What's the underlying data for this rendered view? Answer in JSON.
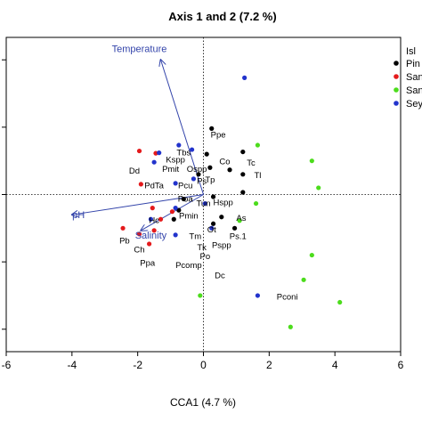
{
  "chart_data": {
    "type": "scatter",
    "title": "Axis 1 and 2 (7.2 %)",
    "xlabel": "CCA1 (4.7 %)",
    "ylabel": "",
    "xlim": [
      -6,
      6
    ],
    "ylim": [
      -3.5,
      3.5
    ],
    "x_ticks": [
      "-6",
      "-4",
      "-2",
      "0",
      "2",
      "4",
      "6"
    ],
    "y_tick_values": [
      -3,
      -1.5,
      0,
      1.5,
      3
    ],
    "reference_lines": {
      "x": 0,
      "y": 0,
      "style": "dotted"
    },
    "legend": {
      "position": "top-right",
      "title": "Isl",
      "entries": [
        {
          "label": "Pin",
          "color": "#000000"
        },
        {
          "label": "San",
          "color": "#e41a1c"
        },
        {
          "label": "San",
          "color": "#4cdc1c"
        },
        {
          "label": "Sey",
          "color": "#2233cc"
        }
      ]
    },
    "series": [
      {
        "name": "Pin",
        "color": "#000000",
        "points": [
          [
            0.25,
            1.47
          ],
          [
            0.1,
            0.9
          ],
          [
            -0.15,
            0.45
          ],
          [
            0.2,
            0.6
          ],
          [
            0.8,
            0.55
          ],
          [
            1.2,
            0.95
          ],
          [
            1.2,
            0.45
          ],
          [
            1.2,
            0.05
          ],
          [
            0.3,
            -0.05
          ],
          [
            -0.6,
            -0.1
          ],
          [
            -0.75,
            -0.35
          ],
          [
            -0.9,
            -0.55
          ],
          [
            0.55,
            -0.5
          ],
          [
            0.95,
            -0.75
          ],
          [
            0.3,
            -0.65
          ]
        ]
      },
      {
        "name": "San",
        "color": "#e41a1c",
        "points": [
          [
            -1.95,
            0.97
          ],
          [
            -1.45,
            0.92
          ],
          [
            -1.9,
            0.23
          ],
          [
            -1.55,
            -0.3
          ],
          [
            -1.3,
            -0.55
          ],
          [
            -1.5,
            -0.8
          ],
          [
            -2.45,
            -0.75
          ],
          [
            -1.95,
            -0.88
          ],
          [
            -1.65,
            -1.1
          ],
          [
            -0.95,
            -0.38
          ]
        ]
      },
      {
        "name": "San",
        "color": "#4cdc1c",
        "points": [
          [
            1.65,
            1.1
          ],
          [
            3.3,
            0.75
          ],
          [
            3.5,
            0.15
          ],
          [
            1.6,
            -0.2
          ],
          [
            1.1,
            -0.58
          ],
          [
            3.3,
            -1.35
          ],
          [
            3.05,
            -1.9
          ],
          [
            4.15,
            -2.4
          ],
          [
            2.65,
            -2.95
          ],
          [
            -0.1,
            -2.25
          ]
        ]
      },
      {
        "name": "Sey",
        "color": "#2233cc",
        "points": [
          [
            1.25,
            2.6
          ],
          [
            -0.75,
            1.1
          ],
          [
            -1.35,
            0.93
          ],
          [
            -1.5,
            0.72
          ],
          [
            -0.35,
            1.0
          ],
          [
            -0.3,
            0.35
          ],
          [
            -0.85,
            0.25
          ],
          [
            -0.85,
            -0.3
          ],
          [
            0.05,
            -0.2
          ],
          [
            0.25,
            -0.75
          ],
          [
            -1.6,
            -0.55
          ],
          [
            -0.85,
            -0.9
          ],
          [
            1.65,
            -2.25
          ]
        ]
      }
    ],
    "species_labels": [
      {
        "text": "Ppe",
        "x": 0.45,
        "y": 1.33
      },
      {
        "text": "Tbs",
        "x": -0.6,
        "y": 0.93
      },
      {
        "text": "Kspp",
        "x": -0.85,
        "y": 0.77
      },
      {
        "text": "Tc",
        "x": 1.45,
        "y": 0.7
      },
      {
        "text": "Co",
        "x": 0.65,
        "y": 0.73
      },
      {
        "text": "Tl",
        "x": 1.65,
        "y": 0.43
      },
      {
        "text": "Dd",
        "x": -2.1,
        "y": 0.53
      },
      {
        "text": "Pmit",
        "x": -1.0,
        "y": 0.57
      },
      {
        "text": "Ospp",
        "x": -0.2,
        "y": 0.57
      },
      {
        "text": "Ps",
        "x": -0.05,
        "y": 0.3
      },
      {
        "text": "Tp",
        "x": 0.2,
        "y": 0.33
      },
      {
        "text": "PdTa",
        "x": -1.5,
        "y": 0.2
      },
      {
        "text": "Pcu",
        "x": -0.55,
        "y": 0.2
      },
      {
        "text": "Poa",
        "x": -0.55,
        "y": -0.1
      },
      {
        "text": "Tun",
        "x": 0.0,
        "y": -0.2
      },
      {
        "text": "Hspp",
        "x": 0.6,
        "y": -0.18
      },
      {
        "text": "Pmin",
        "x": -0.45,
        "y": -0.48
      },
      {
        "text": "As",
        "x": 1.15,
        "y": -0.53
      },
      {
        "text": "Hc",
        "x": -1.5,
        "y": -0.58
      },
      {
        "text": "Ot",
        "x": 0.25,
        "y": -0.78
      },
      {
        "text": "Ps.1",
        "x": 1.05,
        "y": -0.93
      },
      {
        "text": "Pb",
        "x": -2.4,
        "y": -1.03
      },
      {
        "text": "Tm",
        "x": -0.25,
        "y": -0.93
      },
      {
        "text": "Pspp",
        "x": 0.55,
        "y": -1.13
      },
      {
        "text": "Ch",
        "x": -1.95,
        "y": -1.23
      },
      {
        "text": "Tk",
        "x": -0.05,
        "y": -1.18
      },
      {
        "text": "Po",
        "x": 0.05,
        "y": -1.38
      },
      {
        "text": "Ppa",
        "x": -1.7,
        "y": -1.53
      },
      {
        "text": "Pcomp",
        "x": -0.45,
        "y": -1.58
      },
      {
        "text": "Dc",
        "x": 0.5,
        "y": -1.8
      },
      {
        "text": "Pconi",
        "x": 2.55,
        "y": -2.28
      }
    ],
    "env_vectors": [
      {
        "name": "Temperature",
        "x": -1.3,
        "y": 3.0,
        "label_x": -1.95,
        "label_y": 3.25,
        "color": "#3344aa"
      },
      {
        "name": "pH",
        "x": -4.0,
        "y": -0.45,
        "label_x": -3.8,
        "label_y": -0.45,
        "color": "#3344aa"
      },
      {
        "name": "Salinity",
        "x": -1.9,
        "y": -0.8,
        "label_x": -1.6,
        "label_y": -0.9,
        "color": "#3344aa"
      }
    ],
    "grid": false
  }
}
